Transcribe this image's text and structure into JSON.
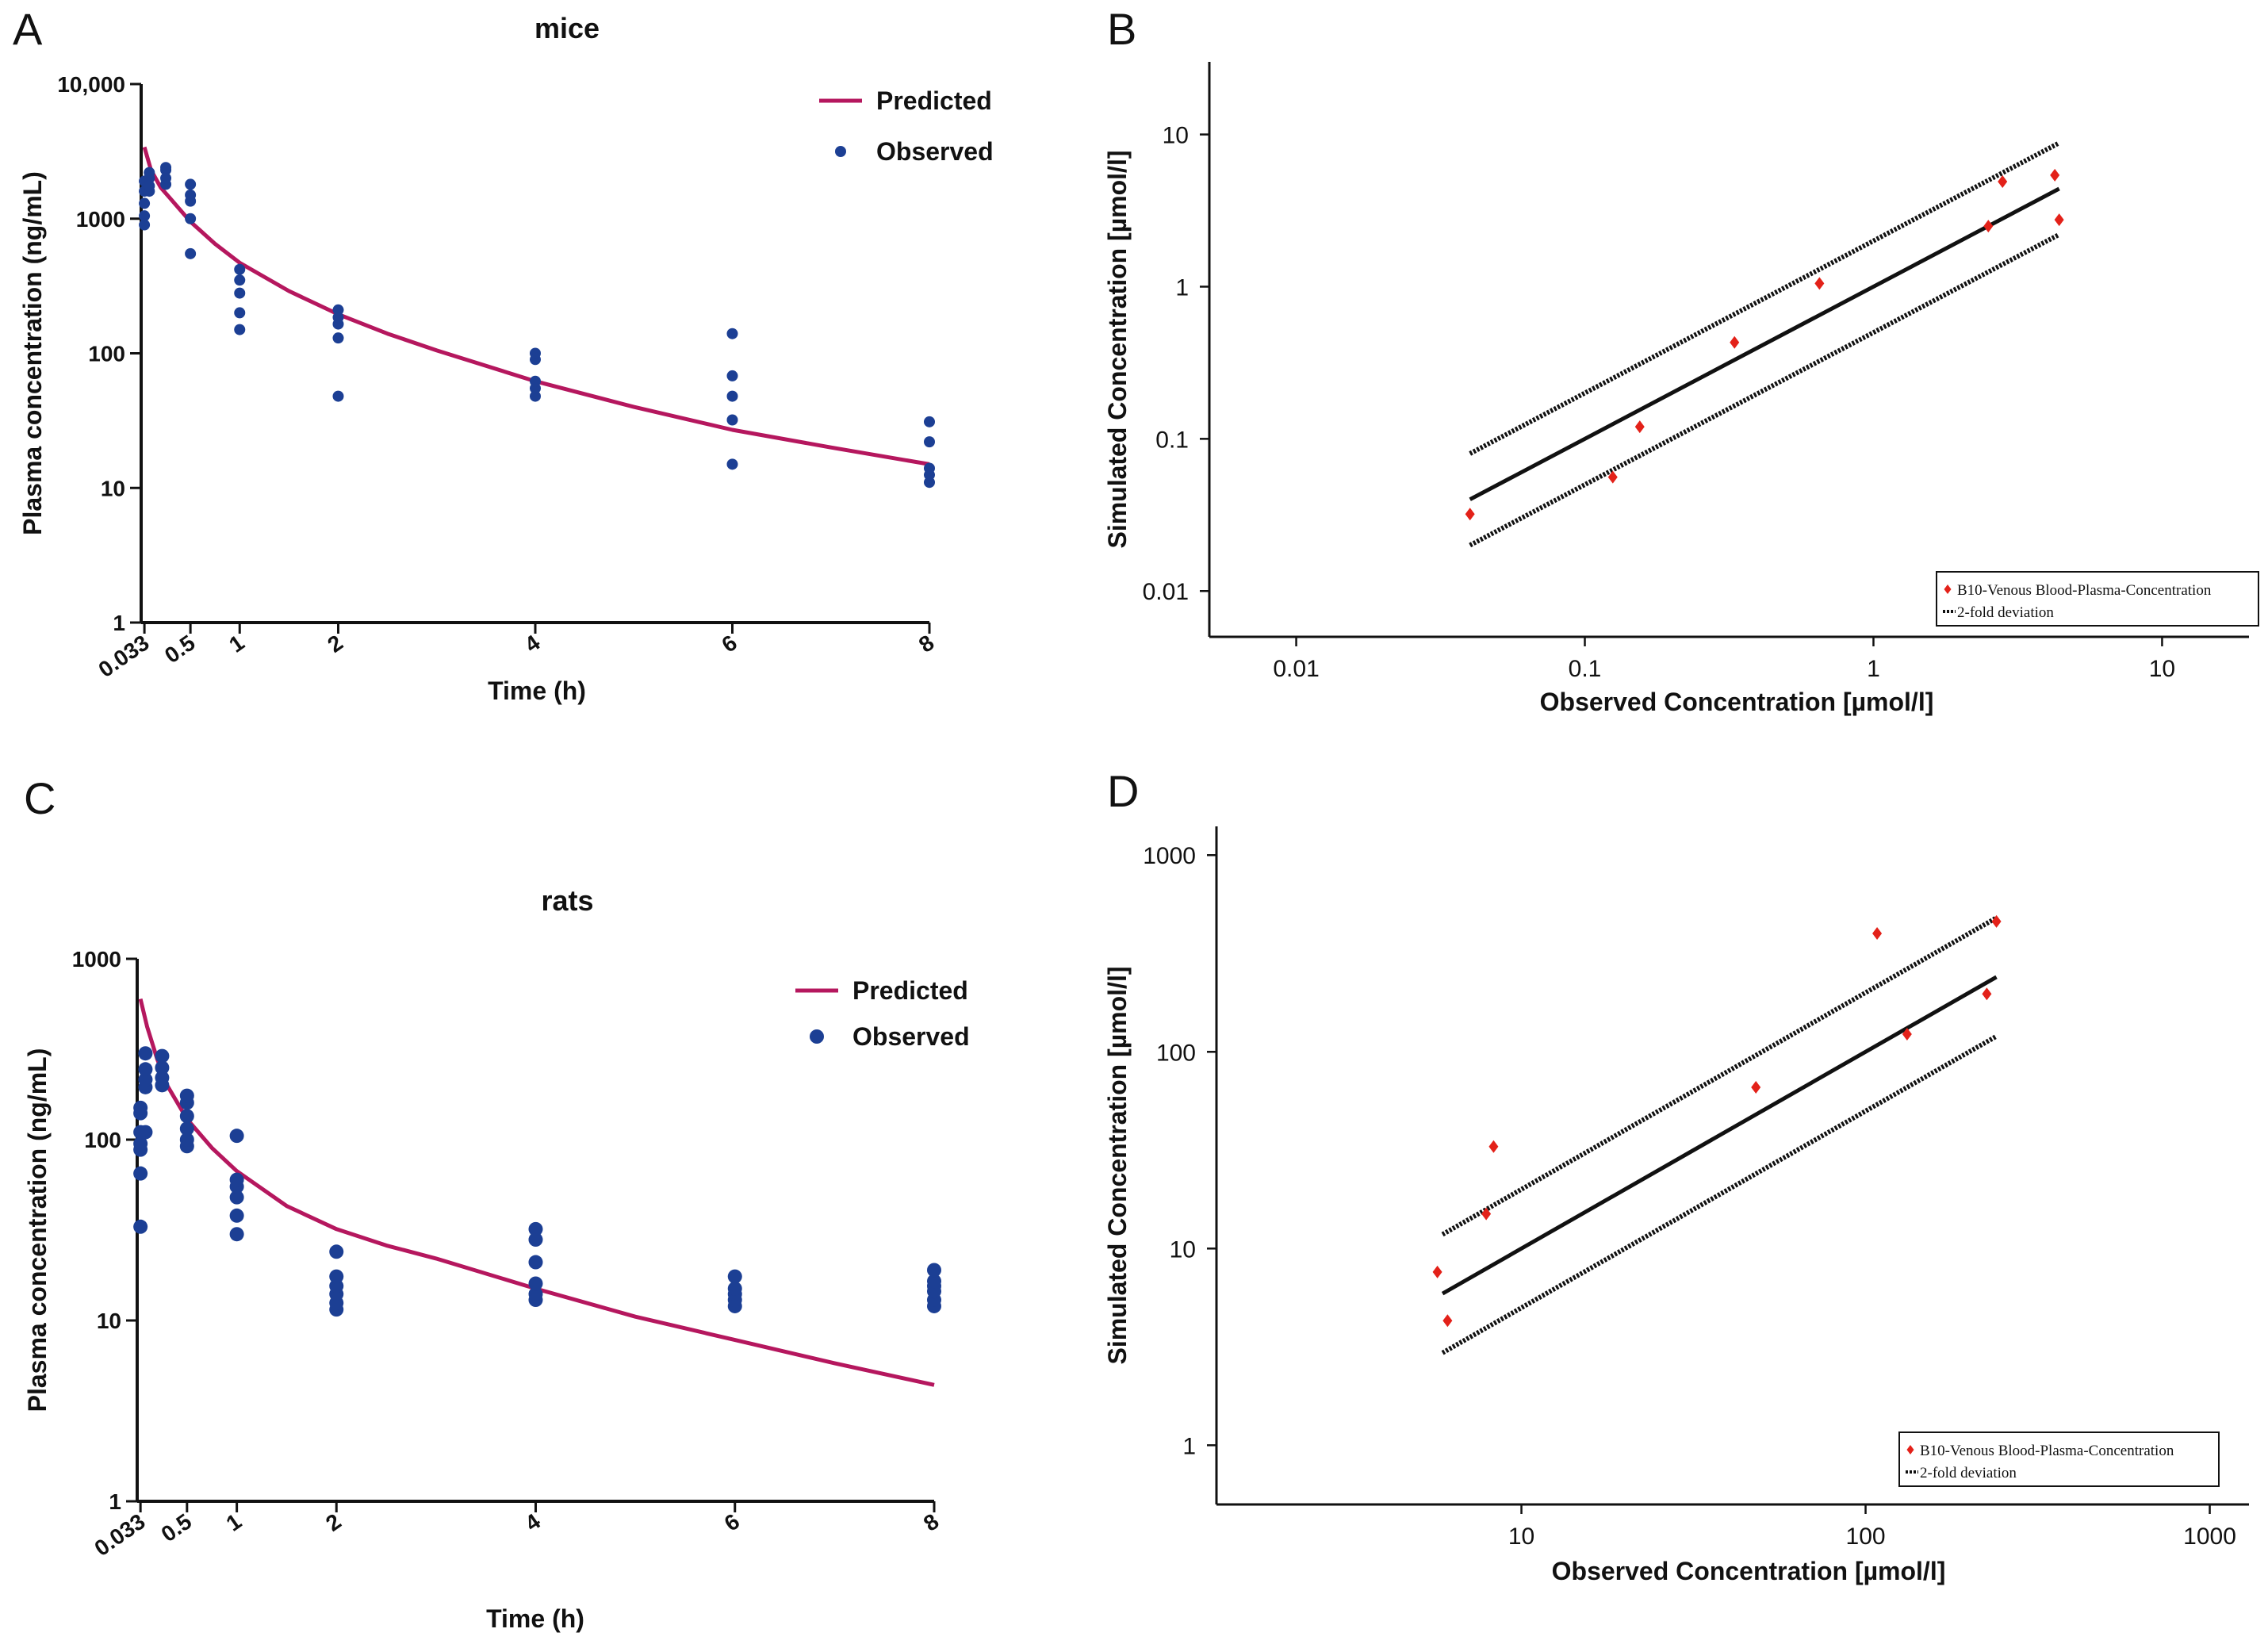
{
  "colors": {
    "predicted": "#b5175e",
    "observed": "#1c3f94",
    "simulated": "#e32119",
    "axis": "#111111"
  },
  "chart_data": [
    {
      "panel": "A",
      "type": "line",
      "title": "mice",
      "xlabel": "Time (h)",
      "ylabel": "Plasma concentration (ng/mL)",
      "yscale": "log",
      "xlim": [
        0,
        8
      ],
      "ylim": [
        1,
        10000
      ],
      "x_ticks": [
        0.033,
        0.5,
        1,
        2,
        4,
        6,
        8
      ],
      "x_tick_labels": [
        "0.033",
        "0.5",
        "1",
        "2",
        "4",
        "6",
        "8"
      ],
      "y_ticks": [
        1,
        10,
        100,
        1000,
        10000
      ],
      "y_tick_labels": [
        "1",
        "10",
        "100",
        "1000",
        "10,000"
      ],
      "legend": [
        "Predicted",
        "Observed"
      ],
      "series": [
        {
          "name": "Predicted",
          "kind": "line",
          "x": [
            0.033,
            0.1,
            0.2,
            0.3,
            0.5,
            0.75,
            1,
            1.5,
            2,
            2.5,
            3,
            4,
            5,
            6,
            7,
            8
          ],
          "y": [
            3400,
            2300,
            1700,
            1400,
            950,
            650,
            470,
            290,
            195,
            140,
            105,
            62,
            40,
            27,
            20,
            15
          ]
        },
        {
          "name": "Observed",
          "kind": "scatter",
          "x": [
            0.033,
            0.033,
            0.033,
            0.033,
            0.033,
            0.083,
            0.083,
            0.083,
            0.083,
            0.25,
            0.25,
            0.25,
            0.25,
            0.5,
            0.5,
            0.5,
            0.5,
            0.5,
            1,
            1,
            1,
            1,
            1,
            2,
            2,
            2,
            2,
            2,
            4,
            4,
            4,
            4,
            4,
            6,
            6,
            6,
            6,
            6,
            8,
            8,
            8,
            8,
            8
          ],
          "y": [
            900,
            1050,
            1300,
            1600,
            1900,
            1600,
            2000,
            2200,
            1750,
            1800,
            2000,
            2300,
            2400,
            550,
            1000,
            1350,
            1500,
            1800,
            150,
            200,
            280,
            350,
            420,
            48,
            130,
            165,
            185,
            210,
            48,
            55,
            62,
            90,
            100,
            15,
            32,
            48,
            68,
            140,
            11,
            12.5,
            14,
            22,
            31
          ]
        }
      ]
    },
    {
      "panel": "B",
      "type": "scatter",
      "xlabel": "Observed Concentration [µmol/l]",
      "ylabel": "Simulated Concentration [µmol/l]",
      "xscale": "log",
      "yscale": "log",
      "xlim": [
        0.005,
        20
      ],
      "ylim": [
        0.005,
        30
      ],
      "x_ticks": [
        0.01,
        0.1,
        1,
        10
      ],
      "x_tick_labels": [
        "0.01",
        "0.1",
        "1",
        "10"
      ],
      "y_ticks": [
        0.01,
        0.1,
        1,
        10
      ],
      "y_tick_labels": [
        "0.01",
        "0.1",
        "1",
        "10"
      ],
      "legend": [
        "B10-Venous Blood-Plasma-Concentration",
        "2-fold deviation"
      ],
      "line_range": [
        0.04,
        4.4
      ],
      "series": [
        {
          "name": "B10-Venous Blood-Plasma-Concentration",
          "x": [
            0.04,
            0.125,
            0.155,
            0.33,
            0.65,
            2.5,
            2.8,
            4.25,
            4.4
          ],
          "y": [
            0.032,
            0.056,
            0.12,
            0.43,
            1.05,
            2.5,
            4.9,
            5.4,
            2.75
          ]
        }
      ]
    },
    {
      "panel": "C",
      "type": "line",
      "title": "rats",
      "xlabel": "Time (h)",
      "ylabel": "Plasma concentration (ng/mL)",
      "yscale": "log",
      "xlim": [
        0,
        8
      ],
      "ylim": [
        1,
        1000
      ],
      "x_ticks": [
        0.033,
        0.5,
        1,
        2,
        4,
        6,
        8
      ],
      "x_tick_labels": [
        "0.033",
        "0.5",
        "1",
        "2",
        "4",
        "6",
        "8"
      ],
      "y_ticks": [
        1,
        10,
        100,
        1000
      ],
      "y_tick_labels": [
        "1",
        "10",
        "100",
        "1000"
      ],
      "legend": [
        "Predicted",
        "Observed"
      ],
      "series": [
        {
          "name": "Predicted",
          "kind": "line",
          "x": [
            0.033,
            0.1,
            0.2,
            0.3,
            0.5,
            0.75,
            1,
            1.5,
            2,
            2.5,
            3,
            4,
            5,
            6,
            7,
            8
          ],
          "y": [
            600,
            420,
            280,
            200,
            130,
            90,
            67,
            43,
            32,
            26,
            22,
            15,
            10.5,
            7.8,
            5.8,
            4.4
          ]
        },
        {
          "name": "Observed",
          "kind": "scatter",
          "x": [
            0.033,
            0.033,
            0.033,
            0.033,
            0.033,
            0.033,
            0.033,
            0.083,
            0.083,
            0.083,
            0.083,
            0.083,
            0.25,
            0.25,
            0.25,
            0.25,
            0.5,
            0.5,
            0.5,
            0.5,
            0.5,
            0.5,
            1,
            1,
            1,
            1,
            1,
            1,
            2,
            2,
            2,
            2,
            2,
            2,
            4,
            4,
            4,
            4,
            4,
            4,
            6,
            6,
            6,
            6,
            6,
            8,
            8,
            8,
            8,
            8,
            8
          ],
          "y": [
            33,
            65,
            88,
            95,
            110,
            140,
            150,
            110,
            195,
            215,
            245,
            300,
            200,
            220,
            250,
            290,
            92,
            100,
            115,
            135,
            160,
            175,
            30,
            38,
            48,
            55,
            60,
            105,
            11.5,
            12.5,
            14,
            15.5,
            17.5,
            24,
            13,
            14,
            16,
            21,
            28,
            32,
            12,
            13,
            14,
            15,
            17.5,
            12,
            13,
            14.5,
            15.5,
            16.5,
            19
          ]
        }
      ]
    },
    {
      "panel": "D",
      "type": "scatter",
      "xlabel": "Observed Concentration [µmol/l]",
      "ylabel": "Simulated Concentration [µmol/l]",
      "xscale": "log",
      "yscale": "log",
      "xlim": [
        1.3,
        1300
      ],
      "ylim": [
        0.5,
        1400
      ],
      "x_ticks": [
        10,
        100,
        1000
      ],
      "x_tick_labels": [
        "10",
        "100",
        "1000"
      ],
      "y_ticks": [
        1,
        10,
        100,
        1000
      ],
      "y_tick_labels": [
        "1",
        "10",
        "100",
        "1000"
      ],
      "legend": [
        "B10-Venous Blood-Plasma-Concentration",
        "2-fold deviation"
      ],
      "line_range": [
        5.9,
        240
      ],
      "series": [
        {
          "name": "B10-Venous Blood-Plasma-Concentration",
          "x": [
            5.7,
            6.1,
            7.9,
            8.3,
            48,
            108,
            132,
            225,
            240
          ],
          "y": [
            7.6,
            4.3,
            15,
            33,
            66,
            400,
            123,
            197,
            460
          ]
        }
      ]
    }
  ]
}
